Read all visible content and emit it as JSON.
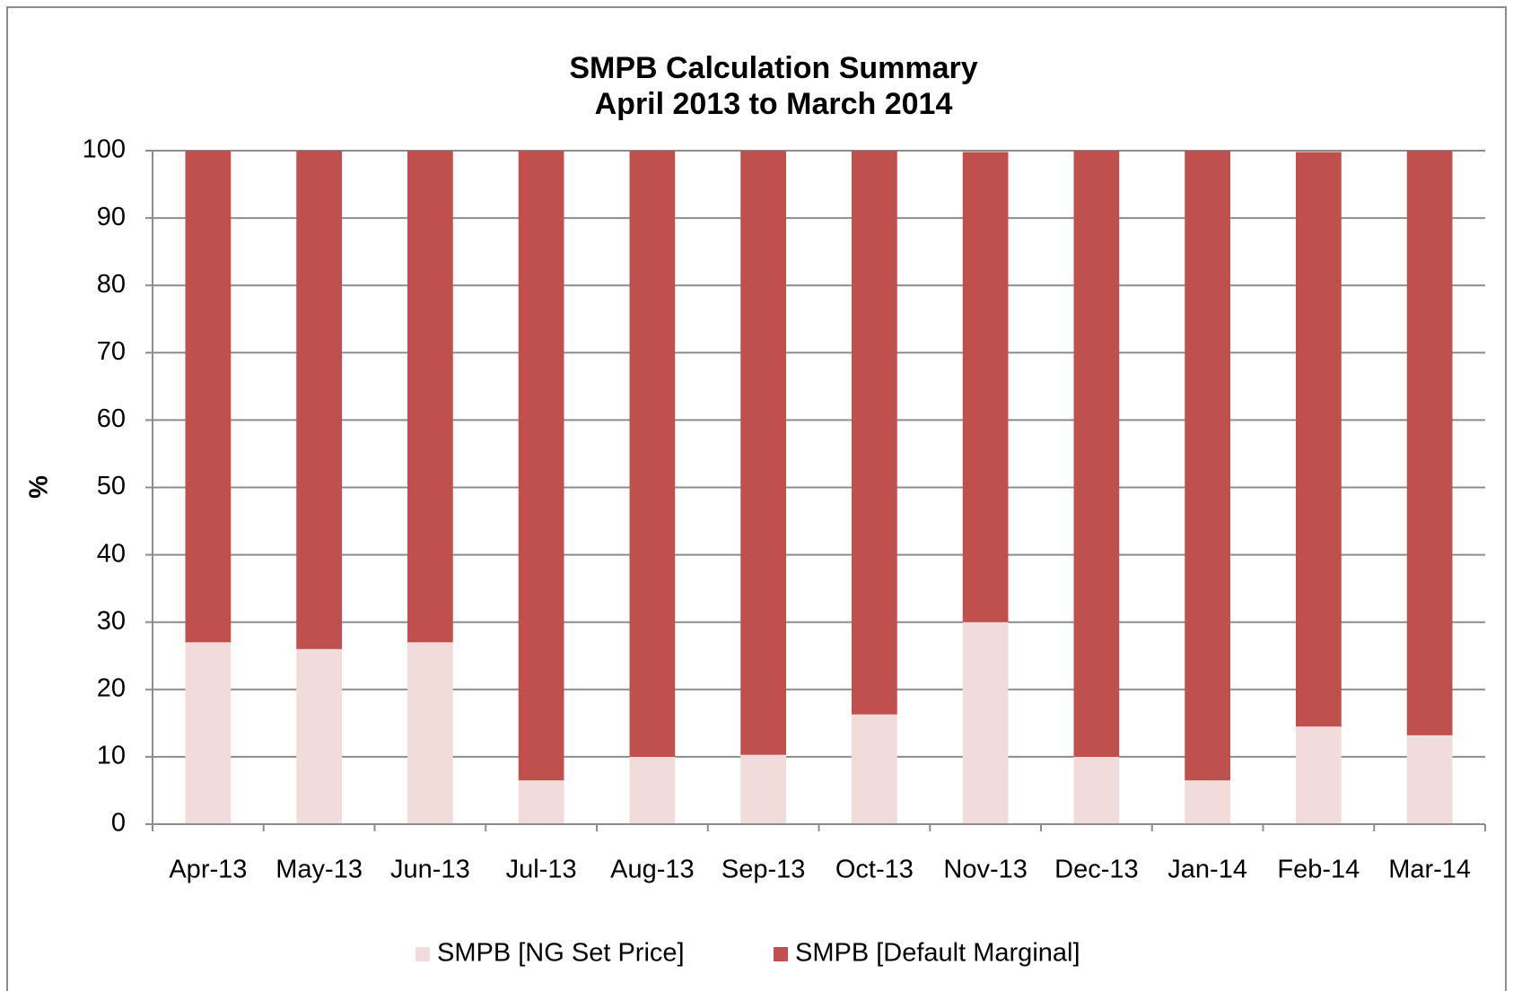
{
  "chart_data": {
    "type": "stacked_bar",
    "title": "SMPB Calculation Summary",
    "subtitle": "April 2013 to March 2014",
    "y_label": "%",
    "categories": [
      "Apr-13",
      "May-13",
      "Jun-13",
      "Jul-13",
      "Aug-13",
      "Sep-13",
      "Oct-13",
      "Nov-13",
      "Dec-13",
      "Jan-14",
      "Feb-14",
      "Mar-14"
    ],
    "series": [
      {
        "name": "SMPB [NG Set Price]",
        "color": "#f2dcdb",
        "values": [
          27,
          26,
          27,
          6.5,
          10,
          10.3,
          16.3,
          30,
          10,
          6.5,
          14.5,
          13.2
        ]
      },
      {
        "name": "SMPB [Default Marginal]",
        "color": "#c0504d",
        "values": [
          73,
          74,
          73,
          93.5,
          90,
          89.7,
          83.7,
          69.8,
          90,
          93.5,
          85.3,
          86.8
        ]
      }
    ],
    "ylim": [
      0,
      100
    ],
    "yticks": [
      0,
      10,
      20,
      30,
      40,
      50,
      60,
      70,
      80,
      90,
      100
    ],
    "grid": true,
    "legend": "bottom"
  }
}
